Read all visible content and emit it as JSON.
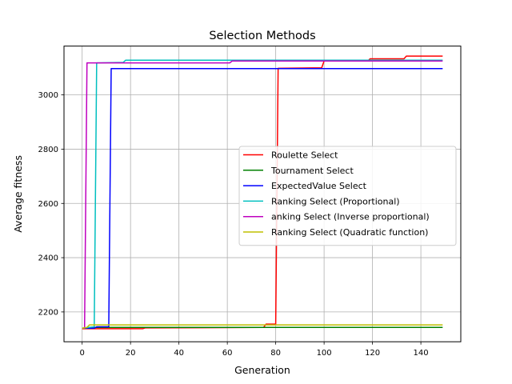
{
  "chart_data": {
    "type": "line",
    "title": "Selection Methods",
    "xlabel": "Generation",
    "ylabel": "Average fitness",
    "xlim": [
      -7.5,
      156.5
    ],
    "ylim": [
      2090,
      3180
    ],
    "xticks": [
      0,
      20,
      40,
      60,
      80,
      100,
      120,
      140
    ],
    "yticks": [
      2200,
      2400,
      2600,
      2800,
      3000
    ],
    "grid": true,
    "legend_position": "center-right",
    "series": [
      {
        "name": "Roulette Select",
        "color": "#ff0000",
        "points": [
          [
            0,
            2138
          ],
          [
            10,
            2138
          ],
          [
            25,
            2138
          ],
          [
            26,
            2141
          ],
          [
            75,
            2143
          ],
          [
            76,
            2155
          ],
          [
            80,
            2155
          ],
          [
            81,
            3098
          ],
          [
            99,
            3100
          ],
          [
            100,
            3125
          ],
          [
            118,
            3125
          ],
          [
            119,
            3133
          ],
          [
            133,
            3133
          ],
          [
            134,
            3143
          ],
          [
            149,
            3143
          ]
        ]
      },
      {
        "name": "Tournament Select",
        "color": "#008000",
        "points": [
          [
            0,
            2140
          ],
          [
            3,
            2140
          ],
          [
            4,
            2143
          ],
          [
            149,
            2143
          ]
        ]
      },
      {
        "name": "ExpectedValue Select",
        "color": "#0000ff",
        "points": [
          [
            0,
            2140
          ],
          [
            5,
            2140
          ],
          [
            6,
            2145
          ],
          [
            11,
            2145
          ],
          [
            12,
            3097
          ],
          [
            149,
            3097
          ]
        ]
      },
      {
        "name": "Ranking Select (Proportional)",
        "color": "#00bfbf",
        "points": [
          [
            0,
            2140
          ],
          [
            5,
            2145
          ],
          [
            6,
            3118
          ],
          [
            17,
            3120
          ],
          [
            18,
            3128
          ],
          [
            149,
            3128
          ]
        ]
      },
      {
        "name": "anking Select (Inverse proportional)",
        "color": "#bf00bf",
        "points": [
          [
            0,
            2140
          ],
          [
            1,
            2140
          ],
          [
            2,
            3118
          ],
          [
            61,
            3118
          ],
          [
            62,
            3125
          ],
          [
            149,
            3125
          ]
        ]
      },
      {
        "name": "Ranking Select (Quadratic function)",
        "color": "#bfbf00",
        "points": [
          [
            0,
            2140
          ],
          [
            2,
            2143
          ],
          [
            3,
            2152
          ],
          [
            149,
            2152
          ]
        ]
      }
    ]
  }
}
